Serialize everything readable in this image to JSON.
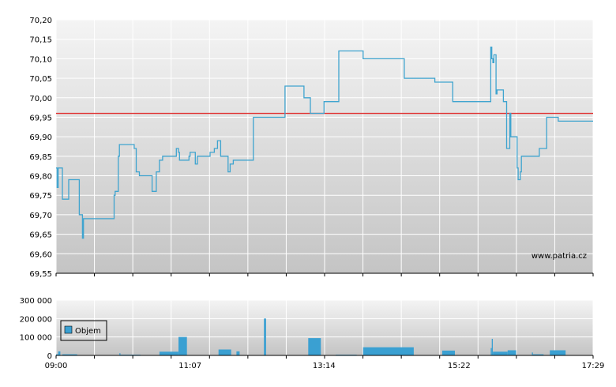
{
  "colors": {
    "price_line": "#3fa4cf",
    "reference_line": "#e03030",
    "volume_bar": "#3aa0d2",
    "grid": "#ffffff",
    "plot_bg_top": "#f4f4f4",
    "plot_bg_bottom": "#c4c4c4"
  },
  "chart_data": [
    {
      "type": "line",
      "name": "price",
      "x_unit": "time",
      "ylim": [
        69.55,
        70.2
      ],
      "yticks": [
        "70,20",
        "70,15",
        "70,10",
        "70,05",
        "70,00",
        "69,95",
        "69,90",
        "69,85",
        "69,80",
        "69,75",
        "69,70",
        "69,65",
        "69,60",
        "69,55"
      ],
      "reference_value": 69.96,
      "watermark": "www.patria.cz",
      "grid": true,
      "x": [
        "09:00",
        "09:01",
        "09:02",
        "09:04",
        "09:06",
        "09:08",
        "09:12",
        "09:14",
        "09:22",
        "09:24",
        "09:25",
        "09:26",
        "09:54",
        "09:55",
        "09:56",
        "09:58",
        "09:59",
        "10:00",
        "10:01",
        "10:02",
        "10:14",
        "10:16",
        "10:18",
        "10:19",
        "10:20",
        "10:22",
        "10:24",
        "10:31",
        "10:33",
        "10:35",
        "10:38",
        "10:40",
        "10:41",
        "10:46",
        "10:47",
        "10:48",
        "10:54",
        "10:55",
        "10:56",
        "10:57",
        "11:00",
        "11:01",
        "11:04",
        "11:06",
        "11:07",
        "11:09",
        "11:12",
        "11:14",
        "11:20",
        "11:24",
        "11:26",
        "11:30",
        "11:33",
        "11:34",
        "11:36",
        "11:38",
        "11:41",
        "11:43",
        "11:45",
        "11:48",
        "11:50",
        "11:52",
        "11:57",
        "11:59",
        "12:01",
        "12:03",
        "12:07",
        "12:08",
        "12:10",
        "12:35",
        "12:37",
        "12:54",
        "12:55",
        "13:01",
        "13:03",
        "13:05",
        "13:12",
        "13:14",
        "13:16",
        "13:17",
        "13:19",
        "13:21",
        "13:22",
        "13:25",
        "13:28",
        "13:35",
        "13:51",
        "14:28",
        "14:30",
        "14:44",
        "14:59",
        "15:01",
        "15:16",
        "15:17",
        "15:23",
        "15:36",
        "15:52",
        "15:53",
        "15:54",
        "15:55",
        "15:56",
        "15:57",
        "15:58",
        "15:59",
        "16:00",
        "16:04",
        "16:07",
        "16:08",
        "16:10",
        "16:11",
        "16:16",
        "16:17",
        "16:18",
        "16:20",
        "16:21",
        "16:22",
        "16:23",
        "16:30",
        "16:38",
        "16:40",
        "16:45",
        "16:56",
        "17:29"
      ],
      "y": [
        69.82,
        69.77,
        69.82,
        69.82,
        69.74,
        69.74,
        69.79,
        69.79,
        69.7,
        69.7,
        69.64,
        69.69,
        69.69,
        69.75,
        69.76,
        69.76,
        69.85,
        69.88,
        69.88,
        69.88,
        69.87,
        69.81,
        69.81,
        69.8,
        69.8,
        69.8,
        69.8,
        69.76,
        69.76,
        69.81,
        69.84,
        69.84,
        69.85,
        69.85,
        69.85,
        69.85,
        69.87,
        69.87,
        69.86,
        69.84,
        69.84,
        69.84,
        69.84,
        69.85,
        69.86,
        69.86,
        69.83,
        69.85,
        69.85,
        69.85,
        69.86,
        69.87,
        69.89,
        69.89,
        69.85,
        69.85,
        69.85,
        69.81,
        69.83,
        69.84,
        69.84,
        69.84,
        69.84,
        69.84,
        69.84,
        69.84,
        69.95,
        69.95,
        69.95,
        69.95,
        70.03,
        70.03,
        70.0,
        69.96,
        69.96,
        69.96,
        69.96,
        69.99,
        69.99,
        69.99,
        69.99,
        69.99,
        69.99,
        69.99,
        70.12,
        70.12,
        70.1,
        70.1,
        70.05,
        70.05,
        70.04,
        70.04,
        69.99,
        69.99,
        69.99,
        69.99,
        70.13,
        70.1,
        70.09,
        70.11,
        70.11,
        70.01,
        70.02,
        70.02,
        70.02,
        69.99,
        69.87,
        69.87,
        69.96,
        69.9,
        69.9,
        69.82,
        69.79,
        69.81,
        69.85,
        69.85,
        69.85,
        69.85,
        69.87,
        69.87,
        69.95,
        69.94,
        69.94
      ]
    },
    {
      "type": "bar",
      "name": "volume",
      "ylim": [
        0,
        300000
      ],
      "yticks": [
        "300 000",
        "200 000",
        "100 000",
        "0"
      ],
      "xticks": [
        "09:00",
        "11:07",
        "13:14",
        "15:22",
        "17:29"
      ],
      "legend": {
        "label": "Objem",
        "position": "left"
      },
      "grid": true,
      "bars": [
        {
          "start": "09:00",
          "end": "09:02",
          "value": 6000
        },
        {
          "start": "09:02",
          "end": "09:04",
          "value": 22000
        },
        {
          "start": "09:06",
          "end": "09:20",
          "value": 6000
        },
        {
          "start": "10:00",
          "end": "10:01",
          "value": 12000
        },
        {
          "start": "10:01",
          "end": "10:20",
          "value": 4000
        },
        {
          "start": "10:38",
          "end": "10:56",
          "value": 20000
        },
        {
          "start": "10:56",
          "end": "11:04",
          "value": 100000
        },
        {
          "start": "11:34",
          "end": "11:46",
          "value": 32000
        },
        {
          "start": "11:51",
          "end": "11:54",
          "value": 22000
        },
        {
          "start": "12:17",
          "end": "12:19",
          "value": 200000
        },
        {
          "start": "12:59",
          "end": "13:11",
          "value": 94000
        },
        {
          "start": "13:25",
          "end": "13:45",
          "value": 4000
        },
        {
          "start": "13:51",
          "end": "14:39",
          "value": 44000
        },
        {
          "start": "15:06",
          "end": "15:18",
          "value": 26000
        },
        {
          "start": "15:52",
          "end": "15:53",
          "value": 40000
        },
        {
          "start": "15:53",
          "end": "15:54",
          "value": 90000
        },
        {
          "start": "15:54",
          "end": "16:08",
          "value": 20000
        },
        {
          "start": "16:08",
          "end": "16:16",
          "value": 28000
        },
        {
          "start": "16:31",
          "end": "16:32",
          "value": 16000
        },
        {
          "start": "16:32",
          "end": "16:42",
          "value": 6000
        },
        {
          "start": "16:48",
          "end": "17:03",
          "value": 28000
        }
      ]
    }
  ]
}
